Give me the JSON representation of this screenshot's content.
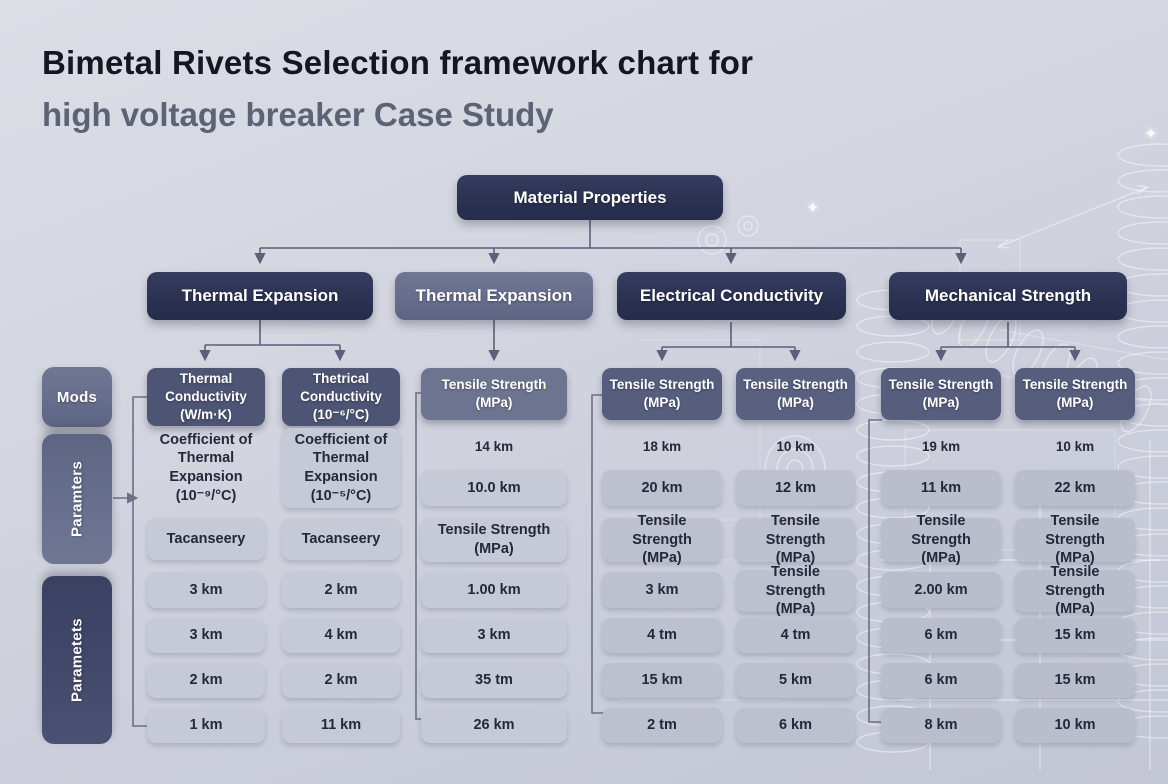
{
  "title": {
    "line1": "Bimetal Rivets Selection framework chart for",
    "line2": "high voltage breaker Case Study"
  },
  "root": {
    "label": "Material Properties"
  },
  "branches": [
    {
      "label": "Thermal Expansion",
      "variant": "dark"
    },
    {
      "label": "Thermal Expansion",
      "variant": "medium"
    },
    {
      "label": "Electrical Conductivity",
      "variant": "dark"
    },
    {
      "label": "Mechanical Strength",
      "variant": "dark"
    }
  ],
  "side_labels": [
    {
      "label": "Mods",
      "orientation": "horizontal",
      "variant": "medium"
    },
    {
      "label": "Paramters",
      "orientation": "vertical",
      "variant": "medium"
    },
    {
      "label": "Parametets",
      "orientation": "vertical",
      "variant": "dark"
    }
  ],
  "columns": [
    {
      "header": "Thermal\nConductivity\n(W/m·K)",
      "cells": [
        {
          "text": "Coefficient of\nThermal Expansion\n(10⁻⁹/°C)",
          "style": "plain"
        },
        {
          "text": "Tacanseery",
          "style": "light"
        },
        {
          "text": "3 km",
          "style": "light"
        },
        {
          "text": "3 km",
          "style": "light"
        },
        {
          "text": "2 km",
          "style": "light"
        },
        {
          "text": "1 km",
          "style": "light"
        }
      ]
    },
    {
      "header": "Thetrical\nConductivity\n(10⁻⁶/°C)",
      "cells": [
        {
          "text": "Coefficient of\nThermal\nExpansion\n(10⁻⁵/°C)",
          "style": "light"
        },
        {
          "text": "Tacanseery",
          "style": "light"
        },
        {
          "text": "2 km",
          "style": "light"
        },
        {
          "text": "4 km",
          "style": "light"
        },
        {
          "text": "2 km",
          "style": "light"
        },
        {
          "text": "11 km",
          "style": "light"
        }
      ]
    },
    {
      "header": "Tensile Strength\n(MPa)",
      "cells": [
        {
          "text": "14 km",
          "style": "plain"
        },
        {
          "text": "10.0 km",
          "style": "light"
        },
        {
          "text": "Tensile Strength\n(MPa)",
          "style": "light"
        },
        {
          "text": "1.00 km",
          "style": "light"
        },
        {
          "text": "3 km",
          "style": "light"
        },
        {
          "text": "35 tm",
          "style": "light"
        },
        {
          "text": "26 km",
          "style": "light"
        }
      ]
    },
    {
      "header": "Tensile Strength\n(MPa)",
      "cells": [
        {
          "text": "18 km",
          "style": "plain"
        },
        {
          "text": "20 km",
          "style": "light"
        },
        {
          "text": "Tensile Strength\n(MPa)",
          "style": "light"
        },
        {
          "text": "3 km",
          "style": "light"
        },
        {
          "text": "4 tm",
          "style": "light"
        },
        {
          "text": "15 km",
          "style": "light"
        },
        {
          "text": "2 tm",
          "style": "light"
        }
      ]
    },
    {
      "header": "Tensile Strength\n(MPa)",
      "cells": [
        {
          "text": "10 km",
          "style": "plain"
        },
        {
          "text": "12 km",
          "style": "light"
        },
        {
          "text": "Tensile Strength\n(MPa)",
          "style": "light"
        },
        {
          "text": "Tensile Strength\n(MPa)",
          "style": "light"
        },
        {
          "text": "4 tm",
          "style": "light"
        },
        {
          "text": "5 km",
          "style": "light"
        },
        {
          "text": "6 km",
          "style": "light"
        }
      ]
    },
    {
      "header": "Tensile Strength\n(MPa)",
      "cells": [
        {
          "text": "19 km",
          "style": "plain"
        },
        {
          "text": "11 km",
          "style": "light"
        },
        {
          "text": "Tensile Strength\n(MPa)",
          "style": "light"
        },
        {
          "text": "2.00 km",
          "style": "light"
        },
        {
          "text": "6 km",
          "style": "light"
        },
        {
          "text": "6 km",
          "style": "light"
        },
        {
          "text": "8 km",
          "style": "light"
        }
      ]
    },
    {
      "header": "Tensile Strength\n(MPa)",
      "cells": [
        {
          "text": "10 km",
          "style": "plain"
        },
        {
          "text": "22 km",
          "style": "light"
        },
        {
          "text": "Tensile Strength\n(MPa)",
          "style": "light"
        },
        {
          "text": "Tensile Strength\n(MPa)",
          "style": "light"
        },
        {
          "text": "15 km",
          "style": "light"
        },
        {
          "text": "15 km",
          "style": "light"
        },
        {
          "text": "10 km",
          "style": "light"
        }
      ]
    }
  ],
  "colors": {
    "background_top": "#d6d8e1",
    "background_bottom": "#c3c6d4",
    "dark_box": "#2b3252",
    "medium_box": "#656d8c",
    "header_dark": "#4d5474",
    "header_light": "#6d7490",
    "header_medium": "#565d7d",
    "value_box": "#c6c9d6",
    "value_box_muted": "#bcc0cf",
    "text_dark": "#23283a",
    "text_light": "#ffffff",
    "title_primary": "#14171f",
    "title_secondary": "#5b6375",
    "connector_line": "#596078",
    "sketch_line": "#ffffff"
  }
}
